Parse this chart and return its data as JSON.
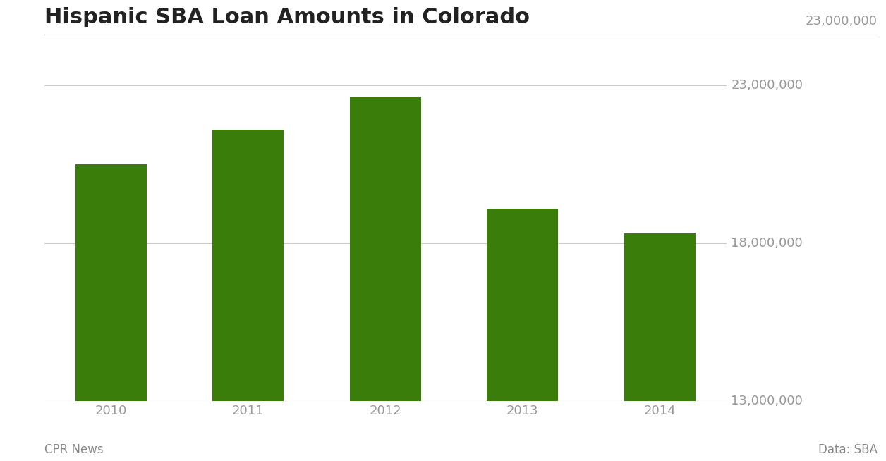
{
  "title": "Hispanic SBA Loan Amounts in Colorado",
  "categories": [
    "2010",
    "2011",
    "2012",
    "2013",
    "2014"
  ],
  "values": [
    20500000,
    21600000,
    22650000,
    19100000,
    18300000
  ],
  "bar_color": "#3a7d0a",
  "background_color": "#ffffff",
  "ylim": [
    13000000,
    23800000
  ],
  "yticks": [
    13000000,
    18000000,
    23000000
  ],
  "ytick_labels": [
    "13,000,000",
    "18,000,000",
    "23,000,000"
  ],
  "footer_left": "CPR News",
  "footer_right": "Data: SBA",
  "title_fontsize": 22,
  "tick_fontsize": 13,
  "footer_fontsize": 12,
  "grid_color": "#cccccc",
  "tick_color": "#999999",
  "title_color": "#222222",
  "footer_color": "#888888",
  "bar_width": 0.52
}
